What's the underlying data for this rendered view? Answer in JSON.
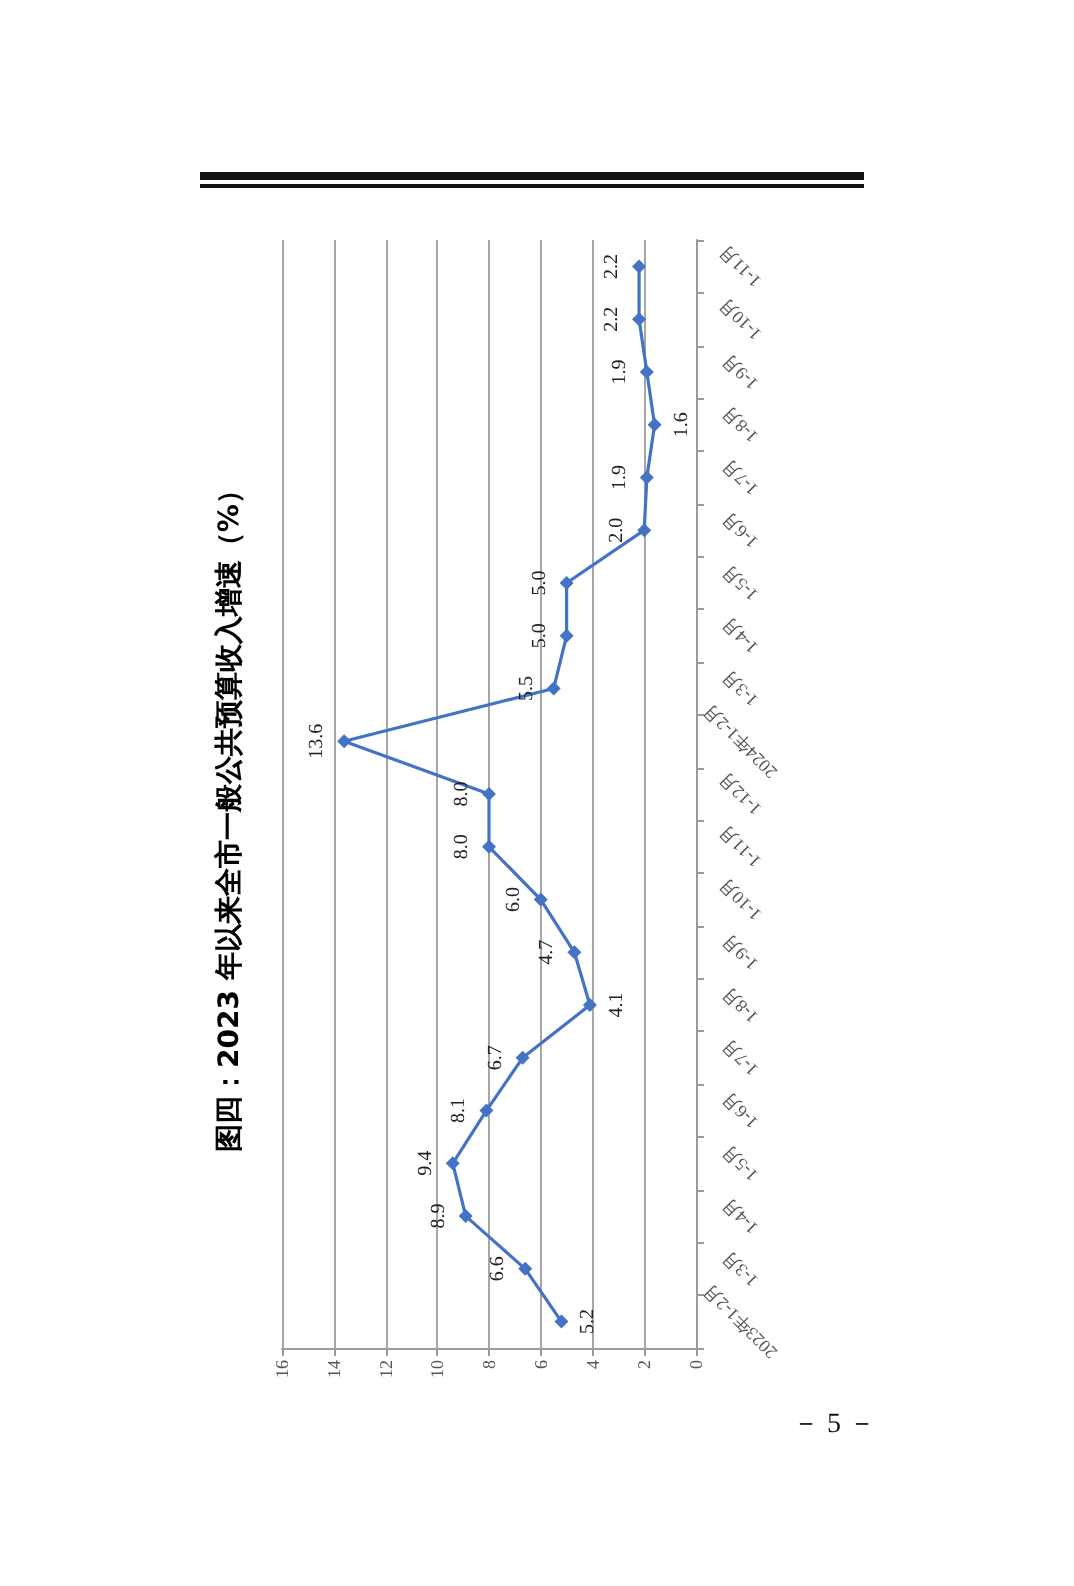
{
  "chart_data": {
    "type": "line",
    "orientation": "horizontal",
    "title": "图四：2023 年以来全市一般公共预算收入增速（%）",
    "categories": [
      "1-11月",
      "1-10月",
      "1-9月",
      "1-8月",
      "1-7月",
      "1-6月",
      "1-5月",
      "1-4月",
      "1-3月",
      "2024年1-2月",
      "1-12月",
      "1-11月",
      "1-10月",
      "1-9月",
      "1-8月",
      "1-7月",
      "1-6月",
      "1-5月",
      "1-4月",
      "1-3月",
      "2023年1-2月"
    ],
    "series": [
      {
        "color": "#4472c4",
        "values": [
          2.2,
          2.2,
          1.9,
          1.6,
          1.9,
          2.0,
          5.0,
          5.0,
          5.5,
          13.6,
          8.0,
          8.0,
          6.0,
          4.7,
          4.1,
          6.7,
          8.1,
          9.4,
          8.9,
          6.6,
          5.2
        ],
        "value_labels": [
          "2.2",
          "2.2",
          "1.9",
          "1.6",
          "1.9",
          "2.0",
          "5.0",
          "5.0",
          "5.5",
          "13.6",
          "8.0",
          "8.0",
          "6.0",
          "4.7",
          "4.1",
          "6.7",
          "8.1",
          "9.4",
          "8.9",
          "6.6",
          "5.2"
        ]
      }
    ],
    "xlim": [
      16,
      0
    ],
    "xticks": [
      0,
      2,
      4,
      6,
      8,
      10,
      12,
      14,
      16
    ],
    "grid": "x",
    "marker": "diamond",
    "line_style": "solid",
    "annotations": [
      "－ 5 －"
    ]
  }
}
